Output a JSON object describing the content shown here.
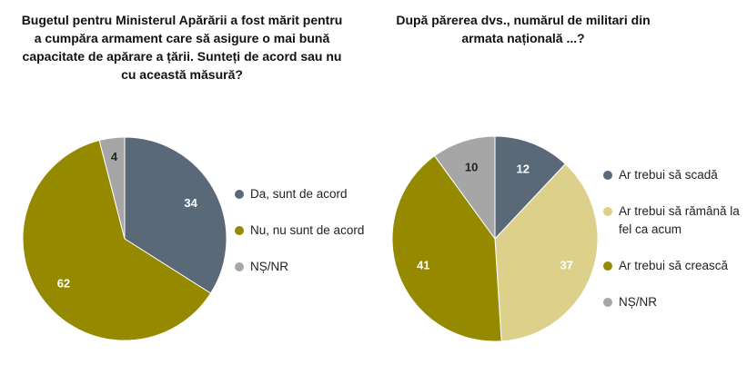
{
  "chart_data": [
    {
      "type": "pie",
      "title": "Bugetul pentru Ministerul Apărării a fost mărit pentru a cumpăra armament care să asigure o mai bună capacitate de apărare a țării. Sunteți de acord sau nu cu această măsură?",
      "categories": [
        "Da, sunt de acord",
        "Nu, nu sunt de acord",
        "NȘ/NR"
      ],
      "values": [
        34,
        62,
        4
      ],
      "colors": [
        "#5a6978",
        "#958900",
        "#a6a6a6"
      ],
      "label_colors": [
        "#ffffff",
        "#ffffff",
        "#222222"
      ],
      "legend": "right"
    },
    {
      "type": "pie",
      "title": "După părerea dvs., numărul de militari din armata națională ...?",
      "categories": [
        "Ar trebui să scadă",
        "Ar trebui să rămână la fel ca acum",
        "Ar trebui să crească",
        "NȘ/NR"
      ],
      "values": [
        12,
        37,
        41,
        10
      ],
      "colors": [
        "#5a6978",
        "#dcd08a",
        "#958900",
        "#a6a6a6"
      ],
      "label_colors": [
        "#ffffff",
        "#ffffff",
        "#ffffff",
        "#222222"
      ],
      "legend": "right"
    }
  ]
}
